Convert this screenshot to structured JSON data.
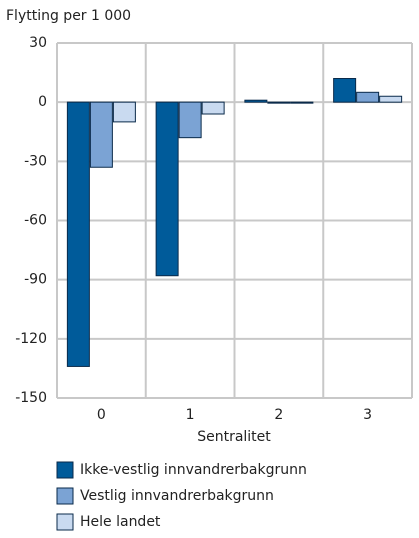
{
  "chart_data": {
    "type": "bar",
    "y_label": "Flytting per 1 000",
    "x_label": "Sentralitet",
    "categories": [
      "0",
      "1",
      "2",
      "3"
    ],
    "series": [
      {
        "name": "Ikke-vestlig innvandrerbakgrunn",
        "color": "#005b9a",
        "values": [
          -134,
          -88,
          1,
          12
        ]
      },
      {
        "name": "Vestlig innvandrerbakgrunn",
        "color": "#7ba3d4",
        "values": [
          -33,
          -18,
          -0.5,
          5
        ]
      },
      {
        "name": "Hele landet",
        "color": "#c9daf0",
        "values": [
          -10,
          -6,
          -0.5,
          3
        ]
      }
    ],
    "ylim": [
      -150,
      30
    ],
    "yticks": [
      30,
      0,
      -30,
      -60,
      -90,
      -120,
      -150
    ],
    "grid": true
  }
}
